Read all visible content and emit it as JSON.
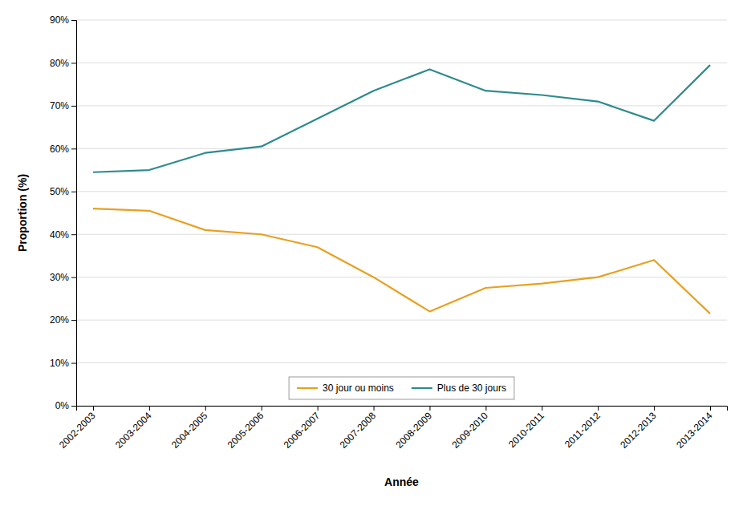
{
  "chart_data": {
    "type": "line",
    "categories": [
      "2002-2003",
      "2003-2004",
      "2004-2005",
      "2005-2006",
      "2006-2007",
      "2007-2008",
      "2008-2009",
      "2009-2010",
      "2010-2011",
      "2011-2012",
      "2012-2013",
      "2013-2014"
    ],
    "series": [
      {
        "name": "30 jour ou moins",
        "color": "#E8A020",
        "values": [
          0.46,
          0.455,
          0.41,
          0.4,
          0.37,
          0.3,
          0.22,
          0.275,
          0.285,
          0.3,
          0.34,
          0.215
        ]
      },
      {
        "name": "Plus de 30 jours",
        "color": "#2E8B8B",
        "values": [
          0.545,
          0.55,
          0.59,
          0.605,
          0.67,
          0.735,
          0.785,
          0.735,
          0.725,
          0.71,
          0.665,
          0.795
        ]
      }
    ],
    "xlabel": "Année",
    "ylabel": "Proportion (%)",
    "ylim": [
      0.0,
      0.9
    ],
    "yticks": [
      {
        "value": 0.0,
        "label": "0%"
      },
      {
        "value": 0.1,
        "label": "10%"
      },
      {
        "value": 0.2,
        "label": "20%"
      },
      {
        "value": 0.3,
        "label": "30%"
      },
      {
        "value": 0.4,
        "label": "40%"
      },
      {
        "value": 0.5,
        "label": "50%"
      },
      {
        "value": 0.6,
        "label": "60%"
      },
      {
        "value": 0.7,
        "label": "70%"
      },
      {
        "value": 0.8,
        "label": "80%"
      },
      {
        "value": 0.9,
        "label": "90%"
      }
    ],
    "grid": true,
    "legend": "bottom"
  }
}
